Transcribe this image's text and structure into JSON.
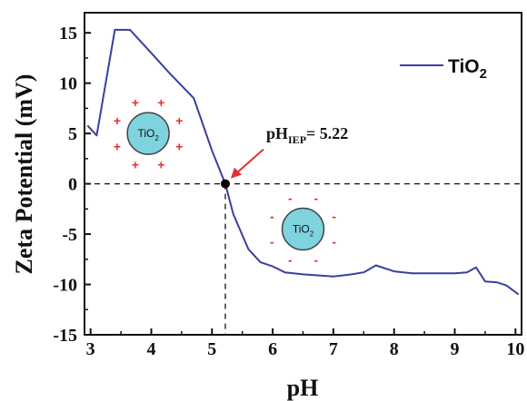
{
  "chart_data": {
    "type": "line",
    "xlabel": "pH",
    "ylabel": "Zeta Potential  (mV)",
    "xlim": [
      2.9,
      10.1
    ],
    "ylim": [
      -15,
      17
    ],
    "xticks": [
      3,
      4,
      5,
      6,
      7,
      8,
      9,
      10
    ],
    "yticks": [
      -15,
      -10,
      -5,
      0,
      5,
      10,
      15
    ],
    "grid": false,
    "legend_position": "top-right",
    "colors": {
      "series": "#3a3f9e",
      "charges": "#e03030",
      "particle_fill": "#7fd3df",
      "marker": "#000000"
    },
    "series": [
      {
        "name": "TiO2",
        "x": [
          2.95,
          3.1,
          3.4,
          3.65,
          4.0,
          4.3,
          4.7,
          5.0,
          5.22,
          5.35,
          5.6,
          5.8,
          6.0,
          6.2,
          6.5,
          7.0,
          7.3,
          7.5,
          7.7,
          8.0,
          8.3,
          8.6,
          9.0,
          9.2,
          9.35,
          9.5,
          9.7,
          9.85,
          10.05
        ],
        "y": [
          5.8,
          4.8,
          15.3,
          15.3,
          13.0,
          11.0,
          8.5,
          3.3,
          0,
          -3.0,
          -6.5,
          -7.8,
          -8.2,
          -8.8,
          -9.0,
          -9.2,
          -9.0,
          -8.8,
          -8.1,
          -8.7,
          -8.9,
          -8.9,
          -8.9,
          -8.8,
          -8.3,
          -9.7,
          -9.8,
          -10.1,
          -11.0
        ]
      }
    ],
    "legend": {
      "label_main": "TiO",
      "label_sub": "2"
    },
    "annotations": {
      "iep": {
        "x": 5.22,
        "y": 0,
        "text_main": "pH",
        "text_sub": "IEP",
        "text_value": "= 5.22"
      },
      "particle_positive": {
        "label_main": "TiO",
        "label_sub": "2",
        "charge": "+",
        "x": 3.95,
        "y": 5.0
      },
      "particle_negative": {
        "label_main": "TiO",
        "label_sub": "2",
        "charge": "-",
        "x": 6.5,
        "y": -4.5
      }
    }
  }
}
